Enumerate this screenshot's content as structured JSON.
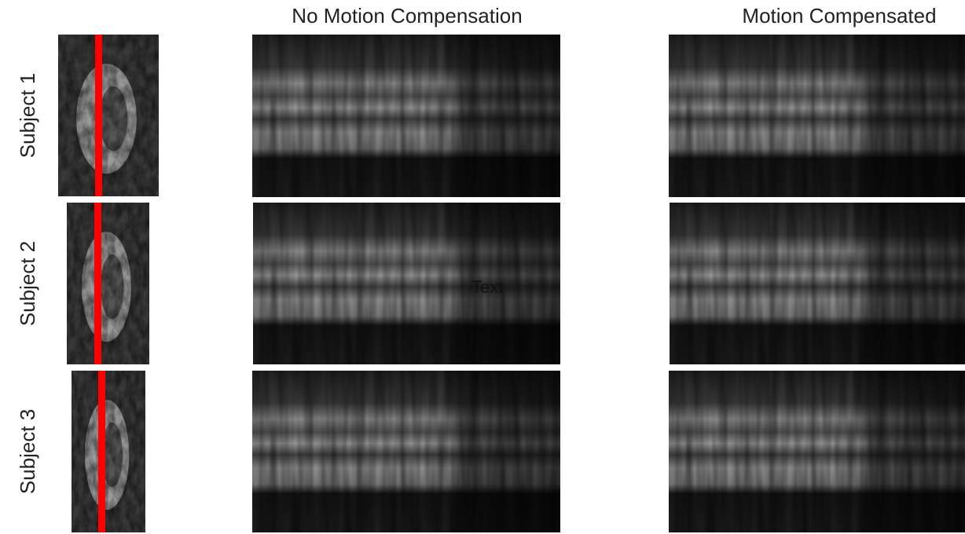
{
  "columns": [
    "No Motion Compensation",
    "Motion Compensated"
  ],
  "rows": [
    {
      "label": "Subject 1"
    },
    {
      "label": "Subject 2"
    },
    {
      "label": "Subject 3"
    }
  ],
  "annotation": "Text"
}
